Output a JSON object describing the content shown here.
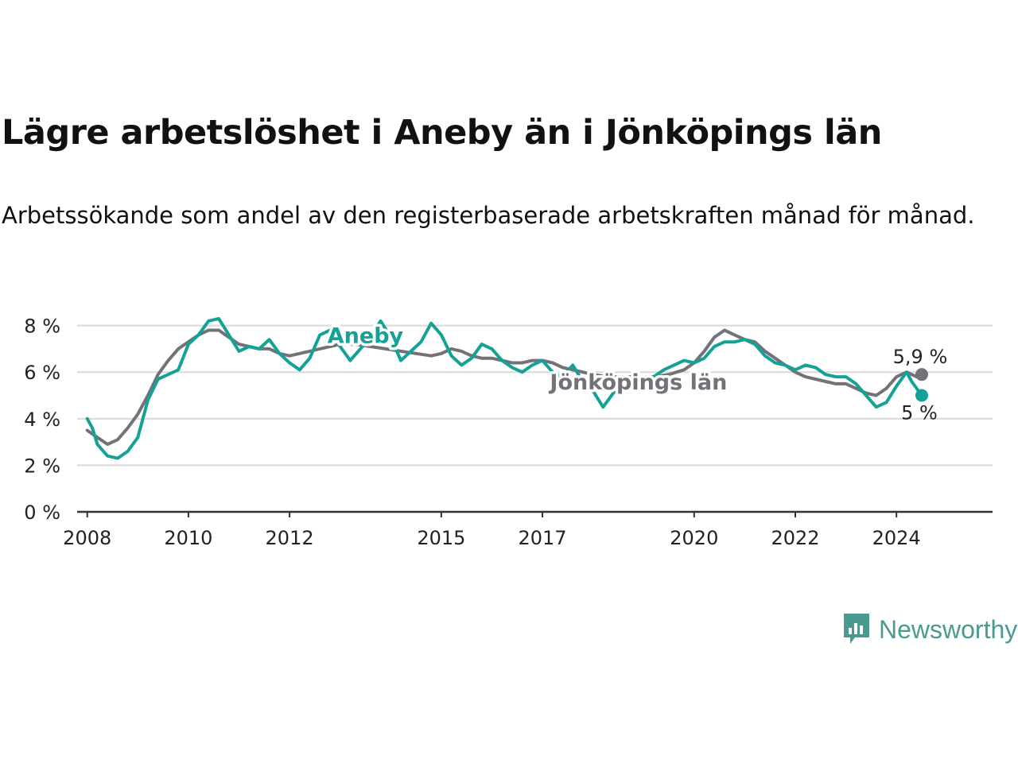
{
  "title": "Lägre arbetslöshet i Aneby än i Jönköpings län",
  "subtitle": "Arbetssökande som andel av den registerbaserade arbetskraften månad för månad.",
  "brand": {
    "name": "Newsworthy",
    "icon": "newsworthy-logo-icon",
    "color": "#4a9a92"
  },
  "chart_data": {
    "type": "line",
    "ylim": [
      0,
      8.5
    ],
    "yticks": [
      0,
      2,
      4,
      6,
      8
    ],
    "ytick_labels": [
      "0 %",
      "2 %",
      "4 %",
      "6 %",
      "8 %"
    ],
    "xlim": [
      2007.8,
      2025.9
    ],
    "xticks": [
      2008,
      2010,
      2012,
      2015,
      2017,
      2020,
      2022,
      2024
    ],
    "xtick_labels": [
      "2008",
      "2010",
      "2012",
      "2015",
      "2017",
      "2020",
      "2022",
      "2024"
    ],
    "grid": true,
    "series": [
      {
        "name": "Jönköpings län",
        "color": "#737278",
        "label": "Jönköpings län",
        "end_label": "5,9 %",
        "points": [
          [
            2008.0,
            3.5
          ],
          [
            2008.2,
            3.2
          ],
          [
            2008.4,
            2.9
          ],
          [
            2008.6,
            3.1
          ],
          [
            2008.8,
            3.6
          ],
          [
            2009.0,
            4.2
          ],
          [
            2009.2,
            5.0
          ],
          [
            2009.4,
            5.9
          ],
          [
            2009.6,
            6.5
          ],
          [
            2009.8,
            7.0
          ],
          [
            2010.0,
            7.3
          ],
          [
            2010.2,
            7.6
          ],
          [
            2010.4,
            7.8
          ],
          [
            2010.6,
            7.8
          ],
          [
            2010.8,
            7.5
          ],
          [
            2011.0,
            7.2
          ],
          [
            2011.2,
            7.1
          ],
          [
            2011.4,
            7.0
          ],
          [
            2011.6,
            7.0
          ],
          [
            2011.8,
            6.8
          ],
          [
            2012.0,
            6.7
          ],
          [
            2012.2,
            6.8
          ],
          [
            2012.4,
            6.9
          ],
          [
            2012.6,
            7.0
          ],
          [
            2012.8,
            7.1
          ],
          [
            2013.0,
            7.2
          ],
          [
            2013.3,
            7.2
          ],
          [
            2013.6,
            7.1
          ],
          [
            2013.9,
            7.0
          ],
          [
            2014.2,
            6.9
          ],
          [
            2014.5,
            6.8
          ],
          [
            2014.8,
            6.7
          ],
          [
            2015.0,
            6.8
          ],
          [
            2015.2,
            7.0
          ],
          [
            2015.4,
            6.9
          ],
          [
            2015.6,
            6.7
          ],
          [
            2015.8,
            6.6
          ],
          [
            2016.0,
            6.6
          ],
          [
            2016.2,
            6.5
          ],
          [
            2016.4,
            6.4
          ],
          [
            2016.6,
            6.4
          ],
          [
            2016.8,
            6.5
          ],
          [
            2017.0,
            6.5
          ],
          [
            2017.2,
            6.4
          ],
          [
            2017.4,
            6.2
          ],
          [
            2017.6,
            6.1
          ],
          [
            2017.8,
            6.0
          ],
          [
            2018.0,
            5.9
          ],
          [
            2018.3,
            5.8
          ],
          [
            2018.6,
            5.8
          ],
          [
            2018.9,
            5.8
          ],
          [
            2019.2,
            5.8
          ],
          [
            2019.5,
            5.9
          ],
          [
            2019.8,
            6.1
          ],
          [
            2020.0,
            6.4
          ],
          [
            2020.2,
            6.9
          ],
          [
            2020.4,
            7.5
          ],
          [
            2020.6,
            7.8
          ],
          [
            2020.8,
            7.6
          ],
          [
            2021.0,
            7.4
          ],
          [
            2021.2,
            7.3
          ],
          [
            2021.4,
            6.9
          ],
          [
            2021.6,
            6.6
          ],
          [
            2021.8,
            6.3
          ],
          [
            2022.0,
            6.0
          ],
          [
            2022.2,
            5.8
          ],
          [
            2022.4,
            5.7
          ],
          [
            2022.6,
            5.6
          ],
          [
            2022.8,
            5.5
          ],
          [
            2023.0,
            5.5
          ],
          [
            2023.2,
            5.3
          ],
          [
            2023.4,
            5.1
          ],
          [
            2023.6,
            5.0
          ],
          [
            2023.8,
            5.3
          ],
          [
            2024.0,
            5.8
          ],
          [
            2024.2,
            6.0
          ],
          [
            2024.4,
            5.8
          ],
          [
            2024.5,
            5.9
          ]
        ]
      },
      {
        "name": "Aneby",
        "color": "#14a297",
        "label": "Aneby",
        "end_label": "5 %",
        "points": [
          [
            2008.0,
            4.0
          ],
          [
            2008.1,
            3.6
          ],
          [
            2008.2,
            2.9
          ],
          [
            2008.4,
            2.4
          ],
          [
            2008.6,
            2.3
          ],
          [
            2008.8,
            2.6
          ],
          [
            2009.0,
            3.2
          ],
          [
            2009.2,
            4.8
          ],
          [
            2009.4,
            5.7
          ],
          [
            2009.6,
            5.9
          ],
          [
            2009.8,
            6.1
          ],
          [
            2010.0,
            7.2
          ],
          [
            2010.2,
            7.6
          ],
          [
            2010.4,
            8.2
          ],
          [
            2010.6,
            8.3
          ],
          [
            2010.8,
            7.6
          ],
          [
            2011.0,
            6.9
          ],
          [
            2011.2,
            7.1
          ],
          [
            2011.4,
            7.0
          ],
          [
            2011.6,
            7.4
          ],
          [
            2011.8,
            6.8
          ],
          [
            2012.0,
            6.4
          ],
          [
            2012.2,
            6.1
          ],
          [
            2012.4,
            6.6
          ],
          [
            2012.6,
            7.6
          ],
          [
            2012.8,
            7.8
          ],
          [
            2013.0,
            7.1
          ],
          [
            2013.2,
            6.5
          ],
          [
            2013.4,
            7.0
          ],
          [
            2013.6,
            7.5
          ],
          [
            2013.8,
            8.2
          ],
          [
            2014.0,
            7.5
          ],
          [
            2014.2,
            6.5
          ],
          [
            2014.4,
            6.9
          ],
          [
            2014.6,
            7.3
          ],
          [
            2014.8,
            8.1
          ],
          [
            2015.0,
            7.6
          ],
          [
            2015.2,
            6.7
          ],
          [
            2015.4,
            6.3
          ],
          [
            2015.6,
            6.6
          ],
          [
            2015.8,
            7.2
          ],
          [
            2016.0,
            7.0
          ],
          [
            2016.2,
            6.5
          ],
          [
            2016.4,
            6.2
          ],
          [
            2016.6,
            6.0
          ],
          [
            2016.8,
            6.3
          ],
          [
            2017.0,
            6.5
          ],
          [
            2017.2,
            6.0
          ],
          [
            2017.4,
            5.8
          ],
          [
            2017.6,
            6.3
          ],
          [
            2017.8,
            5.6
          ],
          [
            2018.0,
            5.2
          ],
          [
            2018.2,
            4.5
          ],
          [
            2018.4,
            5.1
          ],
          [
            2018.6,
            5.5
          ],
          [
            2018.8,
            5.8
          ],
          [
            2019.0,
            5.4
          ],
          [
            2019.2,
            5.8
          ],
          [
            2019.4,
            6.1
          ],
          [
            2019.6,
            6.3
          ],
          [
            2019.8,
            6.5
          ],
          [
            2020.0,
            6.4
          ],
          [
            2020.2,
            6.6
          ],
          [
            2020.4,
            7.1
          ],
          [
            2020.6,
            7.3
          ],
          [
            2020.8,
            7.3
          ],
          [
            2021.0,
            7.4
          ],
          [
            2021.2,
            7.2
          ],
          [
            2021.4,
            6.7
          ],
          [
            2021.6,
            6.4
          ],
          [
            2021.8,
            6.3
          ],
          [
            2022.0,
            6.1
          ],
          [
            2022.2,
            6.3
          ],
          [
            2022.4,
            6.2
          ],
          [
            2022.6,
            5.9
          ],
          [
            2022.8,
            5.8
          ],
          [
            2023.0,
            5.8
          ],
          [
            2023.2,
            5.5
          ],
          [
            2023.4,
            5.0
          ],
          [
            2023.6,
            4.5
          ],
          [
            2023.8,
            4.7
          ],
          [
            2024.0,
            5.4
          ],
          [
            2024.2,
            6.0
          ],
          [
            2024.3,
            5.6
          ],
          [
            2024.5,
            5.0
          ]
        ]
      }
    ]
  }
}
